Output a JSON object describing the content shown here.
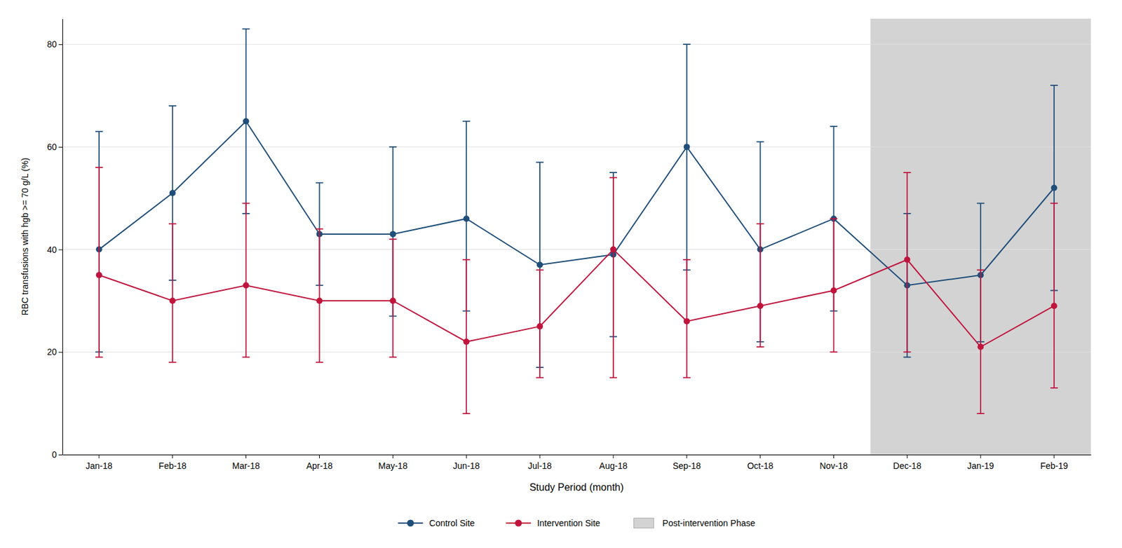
{
  "chart_data": {
    "type": "line",
    "xlabel": "Study Period (month)",
    "ylabel": "RBC transfusions with hgb >= 70 g/L (%)",
    "categories": [
      "Jan-18",
      "Feb-18",
      "Mar-18",
      "Apr-18",
      "May-18",
      "Jun-18",
      "Jul-18",
      "Aug-18",
      "Sep-18",
      "Oct-18",
      "Nov-18",
      "Dec-18",
      "Jan-19",
      "Feb-19"
    ],
    "series": [
      {
        "name": "Control Site",
        "color": "#1f4e79",
        "marker": "circle",
        "line_style": "solid",
        "values": [
          40,
          51,
          65,
          43,
          43,
          46,
          37,
          39,
          60,
          40,
          46,
          33,
          35,
          52
        ],
        "ci_low": [
          20,
          34,
          47,
          33,
          27,
          28,
          17,
          23,
          36,
          22,
          28,
          19,
          22,
          32
        ],
        "ci_high": [
          63,
          68,
          83,
          53,
          60,
          65,
          57,
          55,
          80,
          61,
          64,
          47,
          49,
          72
        ]
      },
      {
        "name": "Intervention Site",
        "color": "#c0143c",
        "marker": "circle",
        "line_style": "solid",
        "values": [
          35,
          30,
          33,
          30,
          30,
          22,
          25,
          40,
          26,
          29,
          32,
          38,
          21,
          29
        ],
        "ci_low": [
          19,
          18,
          19,
          18,
          19,
          8,
          15,
          15,
          15,
          21,
          20,
          20,
          8,
          13
        ],
        "ci_high": [
          56,
          45,
          49,
          44,
          42,
          38,
          36,
          54,
          38,
          45,
          46,
          55,
          36,
          49
        ]
      }
    ],
    "shaded_region": {
      "name": "Post-intervention Phase",
      "color": "#d3d3d3",
      "from": "Dec-18",
      "to": "Feb-19"
    },
    "ylim": [
      0,
      85
    ],
    "yticks": [
      0,
      20,
      40,
      60,
      80
    ],
    "grid": true,
    "legend": "bottom"
  }
}
